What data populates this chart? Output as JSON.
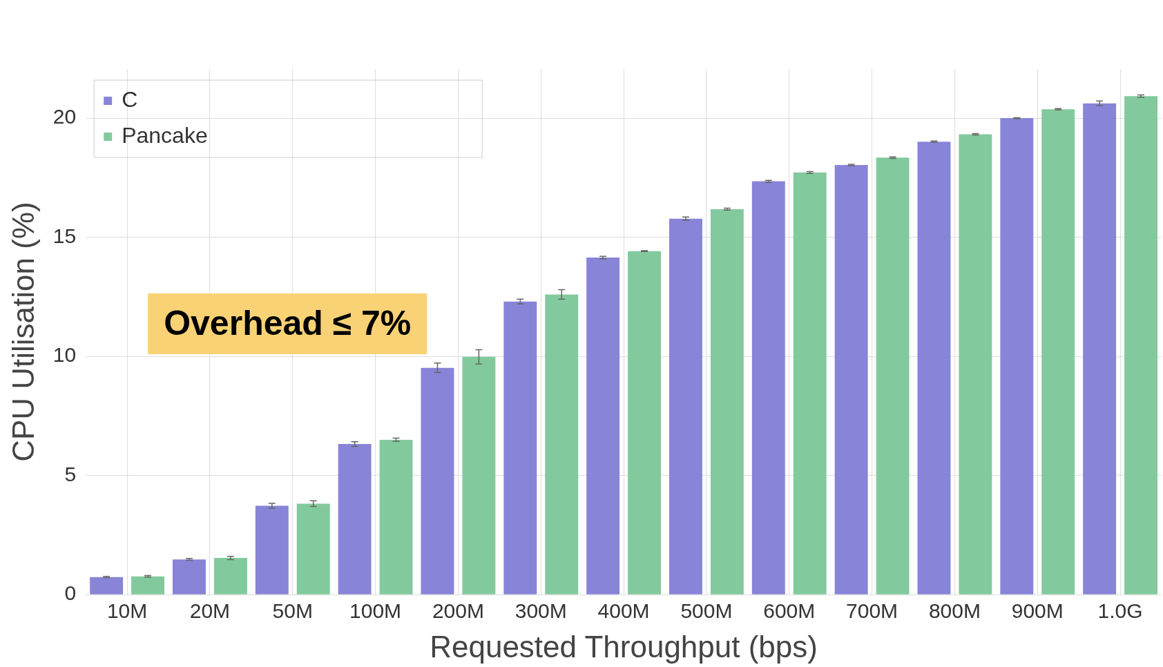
{
  "chart_data": {
    "type": "bar",
    "xlabel": "Requested Throughput (bps)",
    "ylabel": "CPU Utilisation (%)",
    "categories": [
      "10M",
      "20M",
      "50M",
      "100M",
      "200M",
      "300M",
      "400M",
      "500M",
      "600M",
      "700M",
      "800M",
      "900M",
      "1.0G"
    ],
    "series": [
      {
        "name": "C",
        "color": "#8884d8",
        "values": [
          0.74,
          1.48,
          3.73,
          6.32,
          9.52,
          12.3,
          14.15,
          15.78,
          17.35,
          18.03,
          19.01,
          20.0,
          20.62
        ],
        "errors": [
          0.03,
          0.04,
          0.1,
          0.1,
          0.2,
          0.1,
          0.05,
          0.07,
          0.04,
          0.03,
          0.03,
          0.02,
          0.1
        ]
      },
      {
        "name": "Pancake",
        "color": "#82ca9d",
        "values": [
          0.77,
          1.54,
          3.82,
          6.5,
          9.98,
          12.6,
          14.42,
          16.18,
          17.72,
          18.34,
          19.32,
          20.37,
          20.92
        ],
        "errors": [
          0.03,
          0.07,
          0.12,
          0.07,
          0.3,
          0.2,
          0.02,
          0.04,
          0.04,
          0.03,
          0.03,
          0.03,
          0.05
        ]
      }
    ],
    "ylim": [
      0,
      22.06
    ],
    "yticks": [
      0,
      5,
      10,
      15,
      20
    ],
    "grid": true,
    "legend": "top left",
    "annotations": [
      "Overhead ≤ 7%"
    ]
  }
}
